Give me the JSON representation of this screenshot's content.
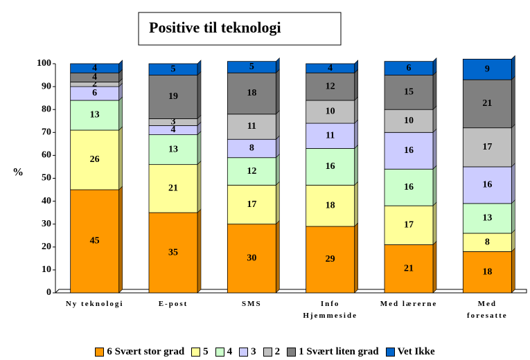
{
  "chart_data": {
    "type": "stacked_bar",
    "title": "Positive til teknologi",
    "ylabel": "%",
    "categories": [
      "Ny teknologi",
      "E-post",
      "SMS",
      "Info\nHjemmeside",
      "Med lærerne",
      "Med\nforesatte"
    ],
    "series": [
      {
        "name": "6 Svært stor grad",
        "color": "#ff9900",
        "values": [
          45,
          35,
          30,
          29,
          21,
          18
        ]
      },
      {
        "name": "5",
        "color": "#ffff99",
        "values": [
          26,
          21,
          17,
          18,
          17,
          8
        ]
      },
      {
        "name": "4",
        "color": "#ccffcc",
        "values": [
          13,
          13,
          12,
          16,
          16,
          13
        ]
      },
      {
        "name": "3",
        "color": "#ccccff",
        "values": [
          6,
          4,
          8,
          11,
          16,
          16
        ]
      },
      {
        "name": "2",
        "color": "#c0c0c0",
        "values": [
          2,
          3,
          11,
          10,
          10,
          17
        ]
      },
      {
        "name": "1 Svært liten grad",
        "color": "#808080",
        "values": [
          4,
          19,
          18,
          12,
          15,
          21
        ]
      },
      {
        "name": "Vet Ikke",
        "color": "#0066cc",
        "values": [
          4,
          5,
          5,
          4,
          6,
          9
        ]
      }
    ],
    "ylim": [
      0,
      100
    ],
    "yticks": [
      0,
      10,
      20,
      30,
      40,
      50,
      60,
      70,
      80,
      90,
      100
    ],
    "legend": "bottom"
  }
}
